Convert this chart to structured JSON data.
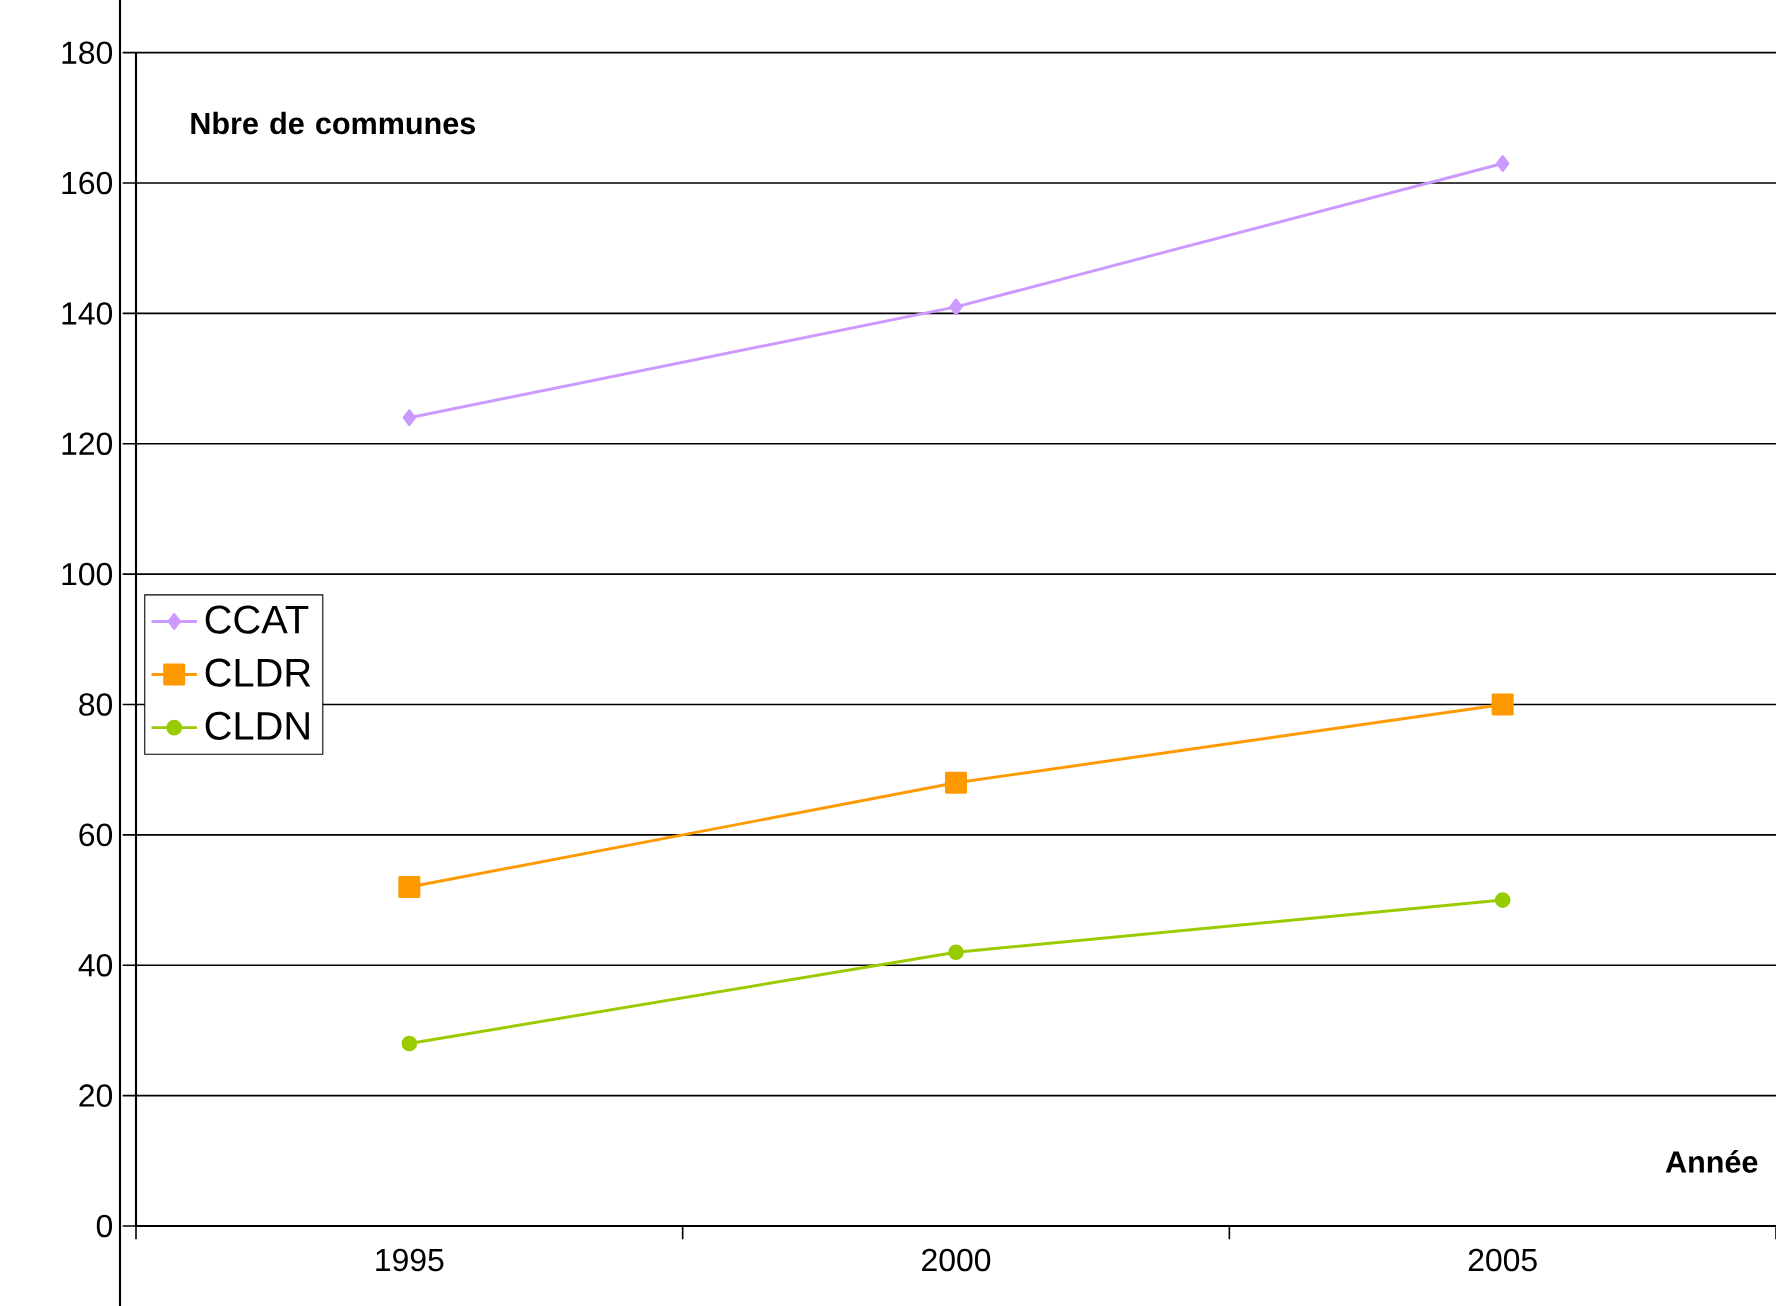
{
  "chart_data": {
    "type": "line",
    "xlabel": "Année",
    "ylabel": "Nbre de communes",
    "categories": [
      "1995",
      "2000",
      "2005"
    ],
    "series": [
      {
        "name": "CCAT",
        "color": "#cc99ff",
        "marker": "diamond",
        "values": [
          124,
          141,
          163
        ]
      },
      {
        "name": "CLDR",
        "color": "#ff9900",
        "marker": "square",
        "values": [
          52,
          68,
          80
        ]
      },
      {
        "name": "CLDN",
        "color": "#99cc00",
        "marker": "circle",
        "values": [
          28,
          42,
          50
        ]
      }
    ],
    "ylim": [
      0,
      180
    ],
    "yticks": [
      0,
      20,
      40,
      60,
      80,
      100,
      120,
      140,
      160,
      180
    ],
    "grid": "y",
    "legend": "left",
    "line_style": "solid"
  }
}
